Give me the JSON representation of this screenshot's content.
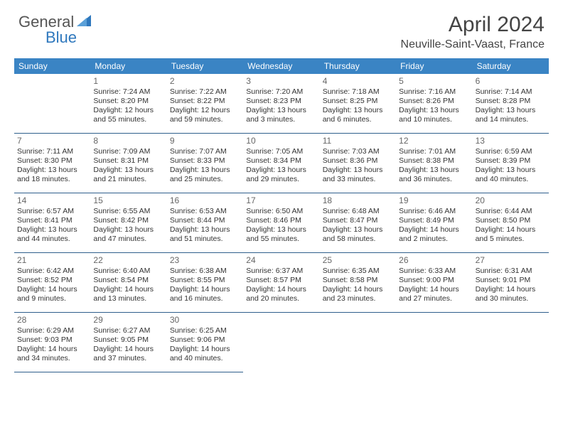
{
  "logo": {
    "text_general": "General",
    "text_blue": "Blue",
    "accent_color": "#2f78bd"
  },
  "title": "April 2024",
  "location": "Neuville-Saint-Vaast, France",
  "colors": {
    "header_bg": "#3a84c4",
    "header_text": "#ffffff",
    "border": "#2f5f8c",
    "body_text": "#333333",
    "daynum": "#666666",
    "background": "#ffffff"
  },
  "weekdays": [
    "Sunday",
    "Monday",
    "Tuesday",
    "Wednesday",
    "Thursday",
    "Friday",
    "Saturday"
  ],
  "leading_blanks": 1,
  "days": [
    {
      "n": 1,
      "sunrise": "7:24 AM",
      "sunset": "8:20 PM",
      "day_h": 12,
      "day_m": 55
    },
    {
      "n": 2,
      "sunrise": "7:22 AM",
      "sunset": "8:22 PM",
      "day_h": 12,
      "day_m": 59
    },
    {
      "n": 3,
      "sunrise": "7:20 AM",
      "sunset": "8:23 PM",
      "day_h": 13,
      "day_m": 3
    },
    {
      "n": 4,
      "sunrise": "7:18 AM",
      "sunset": "8:25 PM",
      "day_h": 13,
      "day_m": 6
    },
    {
      "n": 5,
      "sunrise": "7:16 AM",
      "sunset": "8:26 PM",
      "day_h": 13,
      "day_m": 10
    },
    {
      "n": 6,
      "sunrise": "7:14 AM",
      "sunset": "8:28 PM",
      "day_h": 13,
      "day_m": 14
    },
    {
      "n": 7,
      "sunrise": "7:11 AM",
      "sunset": "8:30 PM",
      "day_h": 13,
      "day_m": 18
    },
    {
      "n": 8,
      "sunrise": "7:09 AM",
      "sunset": "8:31 PM",
      "day_h": 13,
      "day_m": 21
    },
    {
      "n": 9,
      "sunrise": "7:07 AM",
      "sunset": "8:33 PM",
      "day_h": 13,
      "day_m": 25
    },
    {
      "n": 10,
      "sunrise": "7:05 AM",
      "sunset": "8:34 PM",
      "day_h": 13,
      "day_m": 29
    },
    {
      "n": 11,
      "sunrise": "7:03 AM",
      "sunset": "8:36 PM",
      "day_h": 13,
      "day_m": 33
    },
    {
      "n": 12,
      "sunrise": "7:01 AM",
      "sunset": "8:38 PM",
      "day_h": 13,
      "day_m": 36
    },
    {
      "n": 13,
      "sunrise": "6:59 AM",
      "sunset": "8:39 PM",
      "day_h": 13,
      "day_m": 40
    },
    {
      "n": 14,
      "sunrise": "6:57 AM",
      "sunset": "8:41 PM",
      "day_h": 13,
      "day_m": 44
    },
    {
      "n": 15,
      "sunrise": "6:55 AM",
      "sunset": "8:42 PM",
      "day_h": 13,
      "day_m": 47
    },
    {
      "n": 16,
      "sunrise": "6:53 AM",
      "sunset": "8:44 PM",
      "day_h": 13,
      "day_m": 51
    },
    {
      "n": 17,
      "sunrise": "6:50 AM",
      "sunset": "8:46 PM",
      "day_h": 13,
      "day_m": 55
    },
    {
      "n": 18,
      "sunrise": "6:48 AM",
      "sunset": "8:47 PM",
      "day_h": 13,
      "day_m": 58
    },
    {
      "n": 19,
      "sunrise": "6:46 AM",
      "sunset": "8:49 PM",
      "day_h": 14,
      "day_m": 2
    },
    {
      "n": 20,
      "sunrise": "6:44 AM",
      "sunset": "8:50 PM",
      "day_h": 14,
      "day_m": 5
    },
    {
      "n": 21,
      "sunrise": "6:42 AM",
      "sunset": "8:52 PM",
      "day_h": 14,
      "day_m": 9
    },
    {
      "n": 22,
      "sunrise": "6:40 AM",
      "sunset": "8:54 PM",
      "day_h": 14,
      "day_m": 13
    },
    {
      "n": 23,
      "sunrise": "6:38 AM",
      "sunset": "8:55 PM",
      "day_h": 14,
      "day_m": 16
    },
    {
      "n": 24,
      "sunrise": "6:37 AM",
      "sunset": "8:57 PM",
      "day_h": 14,
      "day_m": 20
    },
    {
      "n": 25,
      "sunrise": "6:35 AM",
      "sunset": "8:58 PM",
      "day_h": 14,
      "day_m": 23
    },
    {
      "n": 26,
      "sunrise": "6:33 AM",
      "sunset": "9:00 PM",
      "day_h": 14,
      "day_m": 27
    },
    {
      "n": 27,
      "sunrise": "6:31 AM",
      "sunset": "9:01 PM",
      "day_h": 14,
      "day_m": 30
    },
    {
      "n": 28,
      "sunrise": "6:29 AM",
      "sunset": "9:03 PM",
      "day_h": 14,
      "day_m": 34
    },
    {
      "n": 29,
      "sunrise": "6:27 AM",
      "sunset": "9:05 PM",
      "day_h": 14,
      "day_m": 37
    },
    {
      "n": 30,
      "sunrise": "6:25 AM",
      "sunset": "9:06 PM",
      "day_h": 14,
      "day_m": 40
    }
  ],
  "labels": {
    "sunrise": "Sunrise:",
    "sunset": "Sunset:",
    "daylight": "Daylight:",
    "hours": "hours",
    "and": "and",
    "minutes": "minutes."
  }
}
